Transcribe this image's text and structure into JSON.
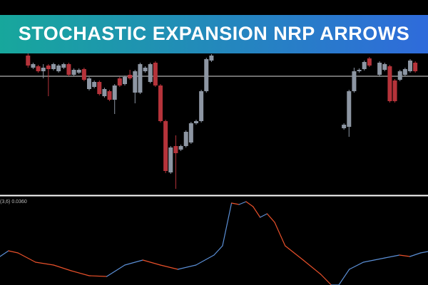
{
  "chart_data": [
    {
      "type": "candlestick",
      "title": "STOCHASTIC EXPANSION NRP ARROWS",
      "x": [
        0,
        1,
        2,
        3,
        4,
        5,
        6,
        7,
        8,
        9,
        10,
        11,
        12,
        13,
        14,
        15,
        16,
        17,
        18,
        19,
        20,
        21,
        22,
        23,
        24,
        25,
        26,
        27,
        28,
        29,
        30,
        31,
        32,
        33,
        34,
        35,
        36,
        62,
        63,
        64,
        65,
        66,
        67,
        69,
        70,
        71,
        72,
        73,
        74,
        75,
        76
      ],
      "open": [
        194,
        177,
        179,
        172,
        180,
        175,
        172,
        177,
        182,
        167,
        170,
        175,
        147,
        150,
        157,
        137,
        144,
        132,
        162,
        154,
        167,
        142,
        142,
        172,
        157,
        184,
        152,
        102,
        30,
        67,
        62,
        67,
        72,
        99,
        102,
        144,
        187,
        92,
        94,
        144,
        172,
        175,
        190,
        167,
        174,
        179,
        159,
        160,
        167,
        172,
        184
      ],
      "high": [
        197,
        184,
        181,
        182,
        182,
        184,
        182,
        184,
        184,
        176,
        176,
        177,
        164,
        159,
        159,
        149,
        146,
        154,
        164,
        166,
        174,
        174,
        184,
        179,
        184,
        186,
        154,
        104,
        67,
        82,
        69,
        89,
        101,
        104,
        146,
        191,
        196,
        99,
        146,
        177,
        176,
        187,
        192,
        186,
        184,
        181,
        161,
        174,
        177,
        189,
        186
      ],
      "low": [
        177,
        175,
        170,
        162,
        137,
        173,
        170,
        175,
        165,
        165,
        168,
        158,
        145,
        148,
        138,
        135,
        130,
        112,
        150,
        152,
        160,
        127,
        140,
        170,
        155,
        150,
        100,
        29,
        28,
        7,
        60,
        65,
        70,
        97,
        100,
        142,
        185,
        90,
        80,
        142,
        170,
        173,
        178,
        165,
        172,
        128,
        128,
        158,
        165,
        170,
        170
      ],
      "close": [
        180,
        182,
        172,
        177,
        175,
        182,
        180,
        182,
        167,
        174,
        174,
        160,
        162,
        157,
        140,
        147,
        132,
        152,
        152,
        164,
        162,
        172,
        182,
        177,
        182,
        152,
        102,
        32,
        65,
        57,
        67,
        87,
        99,
        102,
        144,
        189,
        194,
        97,
        144,
        172,
        174,
        185,
        180,
        184,
        182,
        130,
        130,
        172,
        175,
        187,
        172
      ],
      "up_color": "#8d96a3",
      "down_color": "#b5333a",
      "level": 165,
      "xlim": [
        -5.5,
        78.5
      ],
      "ylim": [
        0,
        272
      ]
    },
    {
      "type": "line",
      "title": "(3,6) 0.0360",
      "x": [
        -5.5,
        -3.8,
        -1.9,
        1.6,
        5.2,
        8.7,
        12.3,
        15.8,
        19.4,
        23,
        26.5,
        30,
        33.6,
        37.2,
        38.9,
        40.7,
        42.2,
        43.6,
        45,
        46.4,
        47.8,
        49.3,
        51.4,
        55,
        58.5,
        60.6,
        62.1,
        64.2,
        67,
        71.3,
        74.2,
        76.3,
        78.4,
        79.9
      ],
      "values": [
        40,
        48,
        45,
        32,
        28,
        20,
        13,
        12,
        28,
        35,
        28,
        22,
        28,
        42,
        55,
        115,
        113,
        117,
        110,
        95,
        100,
        88,
        55,
        35,
        15,
        0,
        0,
        22,
        32,
        38,
        42,
        40,
        45,
        47
      ],
      "up_color": "#5b8fd6",
      "down_color": "#e8502a",
      "xlim": [
        -5.5,
        79.9
      ],
      "ylim": [
        0,
        122
      ]
    }
  ]
}
